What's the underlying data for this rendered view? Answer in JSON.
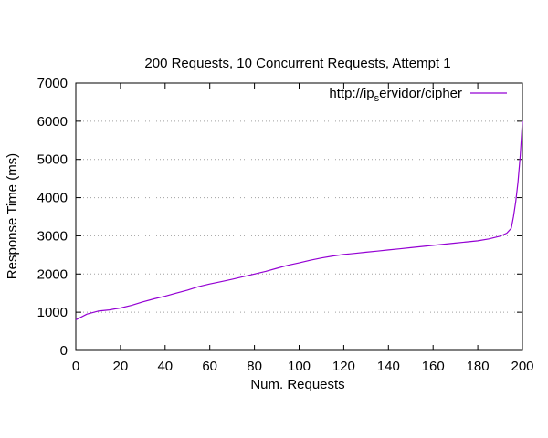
{
  "chart_data": {
    "type": "line",
    "title": "200 Requests, 10 Concurrent Requests, Attempt 1",
    "xlabel": "Num. Requests",
    "ylabel": "Response Time (ms)",
    "xlim": [
      0,
      200
    ],
    "ylim": [
      0,
      7000
    ],
    "x_ticks": [
      "0",
      "20",
      "40",
      "60",
      "80",
      "100",
      "120",
      "140",
      "160",
      "180",
      "200"
    ],
    "y_ticks": [
      "0",
      "1000",
      "2000",
      "3000",
      "4000",
      "5000",
      "6000",
      "7000"
    ],
    "grid": "horizontal dotted",
    "legend_position": "top-right",
    "legend": {
      "prefix": "http://ip",
      "subscript": "s",
      "suffix": "ervidor/cipher"
    },
    "series": [
      {
        "name": "http://ipservidor/cipher",
        "color": "#9400d3",
        "x": [
          0,
          5,
          10,
          15,
          20,
          25,
          30,
          35,
          40,
          45,
          50,
          55,
          60,
          65,
          70,
          75,
          80,
          85,
          90,
          95,
          100,
          105,
          110,
          115,
          120,
          125,
          130,
          135,
          140,
          145,
          150,
          155,
          160,
          165,
          170,
          175,
          180,
          185,
          190,
          193,
          195,
          196,
          197,
          198,
          199,
          200
        ],
        "y": [
          800,
          950,
          1030,
          1060,
          1110,
          1180,
          1270,
          1350,
          1420,
          1500,
          1580,
          1670,
          1740,
          1800,
          1860,
          1930,
          2000,
          2070,
          2150,
          2230,
          2290,
          2360,
          2420,
          2470,
          2510,
          2540,
          2570,
          2600,
          2630,
          2660,
          2690,
          2720,
          2750,
          2780,
          2810,
          2840,
          2870,
          2920,
          2990,
          3070,
          3200,
          3500,
          3900,
          4400,
          5100,
          6000
        ]
      }
    ]
  }
}
